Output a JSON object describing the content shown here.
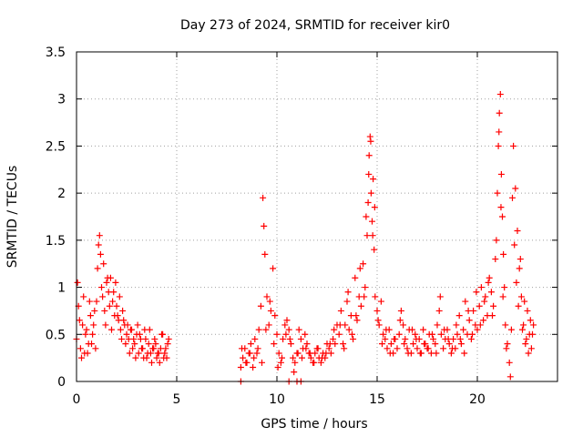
{
  "chart_data": {
    "type": "scatter",
    "title": "Day 273 of 2024, SRMTID for receiver kir0",
    "xlabel": "GPS time / hours",
    "ylabel": "SRMTID / TECUs",
    "xlim": [
      0,
      24
    ],
    "ylim": [
      0,
      3.5
    ],
    "xticks": [
      0,
      5,
      10,
      15,
      20
    ],
    "xtick_labels": [
      "0",
      "5",
      "10",
      "15",
      "20"
    ],
    "yticks": [
      0,
      0.5,
      1,
      1.5,
      2,
      2.5,
      3,
      3.5
    ],
    "ytick_labels": [
      "0",
      "0.5",
      "1",
      "1.5",
      "2",
      "2.5",
      "3",
      "3.5"
    ],
    "grid": true,
    "marker": "+",
    "color": "#ff0000",
    "series": [
      {
        "name": "SRMTID",
        "x": [
          0.0,
          0.1,
          0.2,
          0.3,
          0.4,
          0.5,
          0.6,
          0.7,
          0.8,
          0.9,
          1.0,
          1.05,
          1.1,
          1.15,
          1.2,
          1.25,
          1.3,
          1.4,
          1.5,
          1.6,
          1.7,
          1.8,
          1.9,
          2.0,
          2.1,
          2.2,
          2.3,
          2.4,
          2.5,
          2.6,
          2.7,
          2.8,
          2.9,
          3.0,
          3.1,
          3.2,
          3.3,
          3.4,
          3.5,
          3.6,
          3.7,
          3.8,
          3.9,
          4.0,
          4.1,
          4.2,
          4.3,
          4.4,
          4.5,
          4.6,
          0.05,
          0.15,
          0.25,
          0.35,
          0.45,
          0.55,
          0.65,
          0.75,
          0.85,
          0.95,
          1.35,
          1.45,
          1.55,
          1.65,
          1.75,
          1.85,
          1.95,
          2.05,
          2.15,
          2.25,
          2.35,
          2.45,
          2.55,
          2.65,
          2.75,
          2.85,
          2.95,
          3.05,
          3.15,
          3.25,
          3.35,
          3.45,
          3.55,
          3.65,
          3.75,
          3.85,
          3.95,
          4.05,
          4.15,
          4.25,
          4.35,
          4.45,
          4.55,
          8.2,
          8.3,
          8.4,
          8.5,
          8.6,
          8.7,
          8.8,
          8.9,
          9.0,
          9.1,
          9.2,
          9.3,
          9.35,
          9.4,
          9.5,
          9.6,
          9.7,
          9.8,
          9.9,
          10.0,
          10.1,
          10.2,
          10.3,
          10.4,
          10.5,
          10.6,
          10.7,
          10.8,
          10.9,
          11.0,
          11.1,
          11.2,
          11.3,
          11.4,
          11.5,
          11.6,
          11.7,
          11.8,
          11.9,
          12.0,
          12.1,
          12.2,
          12.3,
          12.4,
          12.5,
          12.6,
          12.7,
          12.8,
          12.9,
          13.0,
          8.25,
          8.45,
          8.65,
          8.85,
          9.05,
          9.25,
          9.45,
          9.65,
          9.85,
          10.05,
          10.25,
          10.45,
          10.65,
          10.85,
          11.05,
          11.25,
          11.45,
          11.65,
          11.85,
          12.05,
          12.25,
          12.45,
          12.65,
          12.85,
          13.1,
          13.2,
          13.3,
          13.4,
          13.5,
          13.6,
          13.7,
          13.8,
          13.9,
          14.0,
          14.1,
          14.2,
          14.3,
          14.4,
          14.5,
          14.55,
          14.6,
          14.65,
          14.7,
          14.75,
          14.8,
          14.85,
          14.9,
          15.0,
          15.1,
          15.2,
          15.3,
          15.4,
          15.5,
          15.6,
          15.7,
          15.8,
          15.9,
          16.0,
          13.15,
          13.35,
          13.55,
          13.75,
          13.95,
          14.15,
          14.35,
          14.45,
          14.58,
          14.68,
          14.78,
          14.88,
          15.05,
          15.25,
          15.45,
          15.65,
          15.85,
          16.1,
          16.2,
          16.3,
          16.4,
          16.5,
          16.6,
          16.7,
          16.8,
          16.9,
          17.0,
          17.1,
          17.2,
          17.3,
          17.4,
          17.5,
          17.6,
          17.7,
          17.8,
          17.9,
          18.0,
          18.1,
          18.2,
          18.3,
          18.4,
          18.5,
          18.6,
          18.7,
          18.8,
          18.9,
          19.0,
          16.15,
          16.35,
          16.55,
          16.75,
          16.95,
          17.15,
          17.35,
          17.55,
          17.75,
          17.95,
          18.15,
          18.35,
          18.55,
          18.75,
          18.95,
          19.1,
          19.2,
          19.3,
          19.4,
          19.5,
          19.6,
          19.7,
          19.8,
          19.9,
          20.0,
          20.1,
          20.2,
          20.3,
          20.4,
          20.5,
          20.6,
          20.7,
          20.8,
          20.9,
          21.0,
          21.05,
          21.1,
          21.15,
          21.2,
          21.25,
          21.3,
          21.35,
          21.4,
          21.5,
          21.6,
          21.7,
          21.8,
          21.9,
          22.0,
          22.1,
          22.2,
          22.3,
          22.4,
          22.5,
          22.6,
          22.7,
          22.8,
          19.15,
          19.35,
          19.55,
          19.75,
          19.95,
          20.15,
          20.35,
          20.55,
          20.75,
          20.95,
          21.08,
          21.18,
          21.28,
          21.45,
          21.65,
          21.75,
          21.85,
          21.95,
          22.05,
          22.15,
          22.25,
          22.35,
          22.45,
          22.55,
          22.65,
          22.75,
          8.2,
          10.6,
          11.0,
          11.2
        ],
        "y": [
          0.45,
          0.8,
          0.35,
          0.6,
          0.3,
          0.55,
          0.4,
          0.7,
          0.5,
          0.75,
          0.85,
          1.2,
          1.45,
          1.55,
          1.35,
          1.0,
          0.9,
          0.75,
          1.05,
          0.95,
          1.1,
          0.85,
          0.7,
          0.8,
          0.65,
          0.55,
          0.75,
          0.6,
          0.5,
          0.45,
          0.55,
          0.35,
          0.4,
          0.5,
          0.3,
          0.45,
          0.35,
          0.55,
          0.25,
          0.4,
          0.3,
          0.35,
          0.45,
          0.25,
          0.3,
          0.35,
          0.5,
          0.3,
          0.25,
          0.45,
          1.05,
          0.65,
          0.25,
          0.9,
          0.5,
          0.3,
          0.85,
          0.4,
          0.6,
          0.35,
          1.25,
          0.6,
          1.1,
          0.8,
          0.55,
          0.95,
          1.05,
          0.7,
          0.9,
          0.45,
          0.65,
          0.4,
          0.6,
          0.3,
          0.55,
          0.45,
          0.25,
          0.6,
          0.5,
          0.35,
          0.25,
          0.45,
          0.3,
          0.55,
          0.2,
          0.35,
          0.4,
          0.3,
          0.2,
          0.5,
          0.25,
          0.35,
          0.4,
          0.15,
          0.25,
          0.35,
          0.2,
          0.3,
          0.4,
          0.15,
          0.45,
          0.3,
          0.55,
          0.8,
          1.95,
          1.65,
          1.35,
          0.9,
          0.6,
          0.75,
          1.2,
          0.7,
          0.5,
          0.3,
          0.2,
          0.45,
          0.6,
          0.65,
          0.55,
          0.4,
          0.25,
          0.2,
          0.3,
          0.55,
          0.45,
          0.35,
          0.5,
          0.4,
          0.3,
          0.25,
          0.2,
          0.3,
          0.35,
          0.25,
          0.2,
          0.3,
          0.25,
          0.4,
          0.35,
          0.3,
          0.45,
          0.4,
          0.6,
          0.35,
          0.2,
          0.3,
          0.25,
          0.35,
          0.2,
          0.55,
          0.85,
          0.4,
          0.15,
          0.25,
          0.5,
          0.45,
          0.1,
          0.3,
          0.25,
          0.35,
          0.3,
          0.2,
          0.35,
          0.25,
          0.3,
          0.4,
          0.55,
          0.5,
          0.75,
          0.4,
          0.6,
          0.85,
          0.55,
          0.7,
          0.45,
          1.1,
          0.65,
          0.9,
          0.8,
          1.25,
          1.0,
          1.55,
          1.9,
          2.4,
          2.6,
          2.0,
          1.7,
          2.15,
          1.4,
          0.9,
          0.75,
          0.6,
          0.85,
          0.5,
          0.45,
          0.35,
          0.55,
          0.4,
          0.3,
          0.45,
          0.35,
          0.6,
          0.35,
          0.95,
          0.5,
          0.7,
          1.2,
          0.9,
          1.75,
          2.2,
          2.55,
          1.55,
          1.85,
          0.65,
          0.4,
          0.55,
          0.3,
          0.45,
          0.5,
          0.75,
          0.6,
          0.45,
          0.35,
          0.55,
          0.3,
          0.4,
          0.5,
          0.35,
          0.45,
          0.3,
          0.55,
          0.4,
          0.35,
          0.5,
          0.3,
          0.45,
          0.4,
          0.6,
          0.75,
          0.5,
          0.35,
          0.45,
          0.55,
          0.4,
          0.3,
          0.45,
          0.35,
          0.5,
          0.65,
          0.4,
          0.3,
          0.55,
          0.45,
          0.3,
          0.4,
          0.35,
          0.5,
          0.3,
          0.9,
          0.55,
          0.45,
          0.35,
          0.6,
          0.7,
          0.4,
          0.55,
          0.85,
          0.5,
          0.65,
          0.45,
          0.75,
          0.6,
          0.55,
          0.8,
          1.0,
          0.65,
          0.9,
          0.7,
          1.1,
          0.95,
          0.8,
          1.3,
          2.0,
          2.5,
          2.85,
          3.05,
          2.2,
          1.75,
          1.35,
          1.0,
          0.6,
          0.4,
          0.2,
          0.55,
          2.5,
          2.05,
          1.6,
          1.2,
          0.9,
          0.6,
          0.4,
          0.75,
          0.5,
          0.35,
          0.6,
          0.45,
          0.3,
          0.75,
          0.5,
          0.95,
          0.6,
          0.85,
          1.05,
          0.7,
          1.5,
          2.65,
          1.85,
          0.9,
          0.35,
          0.05,
          1.95,
          1.45,
          1.05,
          0.8,
          1.3,
          0.55,
          0.85,
          0.45,
          0.3,
          0.65,
          0.5,
          0.0,
          0.0,
          0.0,
          0.0
        ]
      }
    ]
  }
}
